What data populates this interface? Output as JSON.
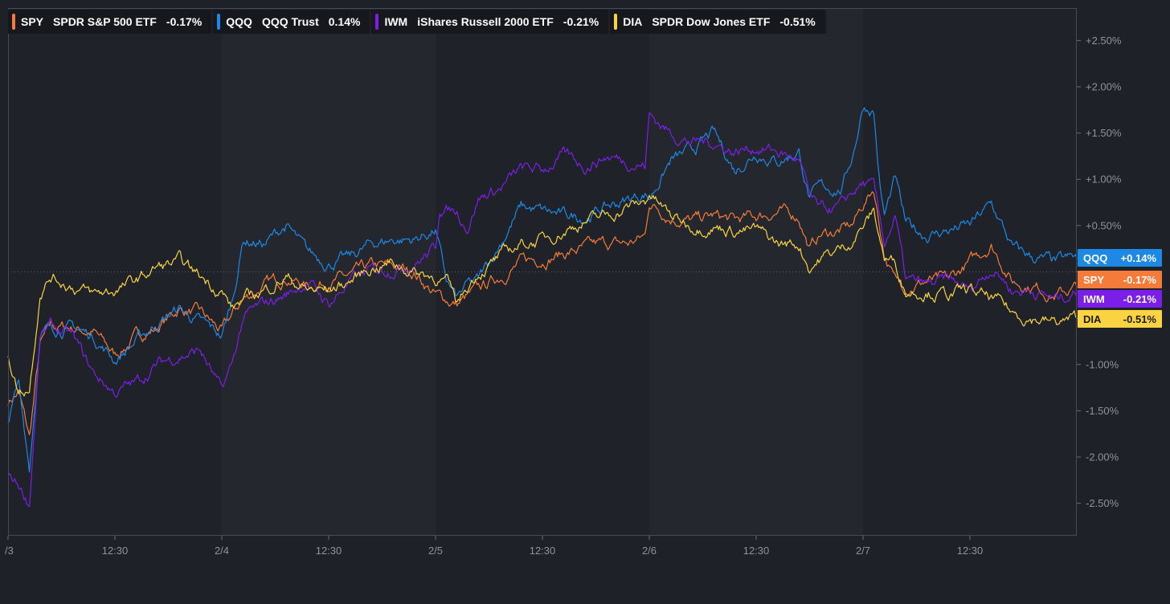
{
  "legend": [
    {
      "ticker": "SPY",
      "name": "SPDR S&P 500 ETF",
      "change": "-0.17%",
      "color": "#f47b3a"
    },
    {
      "ticker": "QQQ",
      "name": "QQQ Trust",
      "change": "0.14%",
      "color": "#1e88e5"
    },
    {
      "ticker": "IWM",
      "name": "iShares Russell 2000 ETF",
      "change": "-0.21%",
      "color": "#7b1fe8"
    },
    {
      "ticker": "DIA",
      "name": "SPDR Dow Jones ETF",
      "change": "-0.51%",
      "color": "#f9d342"
    }
  ],
  "badges": [
    {
      "ticker": "QQQ",
      "value": "+0.14%",
      "color": "#1e88e5",
      "text_color": "#ffffff"
    },
    {
      "ticker": "SPY",
      "value": "-0.17%",
      "color": "#f47b3a",
      "text_color": "#ffffff"
    },
    {
      "ticker": "IWM",
      "value": "-0.21%",
      "color": "#7b1fe8",
      "text_color": "#ffffff"
    },
    {
      "ticker": "DIA",
      "value": "-0.51%",
      "color": "#f9d342",
      "text_color": "#1a1a1a"
    }
  ],
  "chart_data": {
    "type": "line",
    "x_ticks": [
      "/3",
      "12:30",
      "2/4",
      "12:30",
      "2/5",
      "12:30",
      "2/6",
      "12:30",
      "2/7",
      "12:30"
    ],
    "y_ticks": [
      {
        "value": 2.5,
        "label": "+2.50%"
      },
      {
        "value": 2.0,
        "label": "+2.00%"
      },
      {
        "value": 1.5,
        "label": "+1.50%"
      },
      {
        "value": 1.0,
        "label": "+1.00%"
      },
      {
        "value": 0.5,
        "label": "+0.50%"
      },
      {
        "value": 0,
        "label": ""
      },
      {
        "value": -0.5,
        "label": ""
      },
      {
        "value": -1.0,
        "label": "-1.00%"
      },
      {
        "value": -1.5,
        "label": "-1.50%"
      },
      {
        "value": -2.0,
        "label": "-2.00%"
      },
      {
        "value": -2.5,
        "label": "-2.50%"
      }
    ],
    "ylim": [
      -2.85,
      2.85
    ],
    "xlim": [
      0,
      5
    ],
    "baseline": 0,
    "grid": false,
    "legend_position": "top-left",
    "series": [
      {
        "name": "SPY",
        "color": "#f47b3a",
        "points": [
          [
            0,
            -1.4
          ],
          [
            0.05,
            -1.3
          ],
          [
            0.1,
            -1.8
          ],
          [
            0.15,
            -0.8
          ],
          [
            0.2,
            -0.6
          ],
          [
            0.3,
            -0.6
          ],
          [
            0.4,
            -0.65
          ],
          [
            0.5,
            -0.9
          ],
          [
            0.6,
            -0.7
          ],
          [
            0.7,
            -0.6
          ],
          [
            0.8,
            -0.4
          ],
          [
            0.9,
            -0.45
          ],
          [
            1.0,
            -0.65
          ],
          [
            1.1,
            -0.3
          ],
          [
            1.2,
            -0.15
          ],
          [
            1.3,
            -0.05
          ],
          [
            1.4,
            -0.15
          ],
          [
            1.5,
            -0.1
          ],
          [
            1.6,
            -0.05
          ],
          [
            1.7,
            0.05
          ],
          [
            1.8,
            0.05
          ],
          [
            1.9,
            0.0
          ],
          [
            2.0,
            -0.25
          ],
          [
            2.1,
            -0.35
          ],
          [
            2.2,
            -0.2
          ],
          [
            2.3,
            -0.05
          ],
          [
            2.4,
            0.1
          ],
          [
            2.5,
            0.15
          ],
          [
            2.6,
            0.2
          ],
          [
            2.7,
            0.25
          ],
          [
            2.8,
            0.3
          ],
          [
            2.9,
            0.3
          ],
          [
            2.98,
            0.38
          ],
          [
            3.0,
            0.75
          ],
          [
            3.1,
            0.6
          ],
          [
            3.2,
            0.55
          ],
          [
            3.3,
            0.6
          ],
          [
            3.4,
            0.55
          ],
          [
            3.5,
            0.6
          ],
          [
            3.6,
            0.65
          ],
          [
            3.7,
            0.6
          ],
          [
            3.75,
            0.25
          ],
          [
            3.8,
            0.4
          ],
          [
            3.9,
            0.45
          ],
          [
            3.95,
            0.5
          ],
          [
            4.0,
            0.72
          ],
          [
            4.05,
            0.9
          ],
          [
            4.1,
            0.2
          ],
          [
            4.15,
            -0.1
          ],
          [
            4.2,
            -0.15
          ],
          [
            4.3,
            -0.1
          ],
          [
            4.4,
            -0.1
          ],
          [
            4.5,
            0.1
          ],
          [
            4.6,
            0.3
          ],
          [
            4.65,
            0.1
          ],
          [
            4.7,
            -0.1
          ],
          [
            4.8,
            -0.15
          ],
          [
            4.9,
            -0.25
          ],
          [
            5.0,
            -0.17
          ]
        ]
      },
      {
        "name": "QQQ",
        "color": "#1e88e5",
        "points": [
          [
            0,
            -1.6
          ],
          [
            0.05,
            -1.2
          ],
          [
            0.1,
            -2.1
          ],
          [
            0.15,
            -0.7
          ],
          [
            0.2,
            -0.6
          ],
          [
            0.3,
            -0.6
          ],
          [
            0.4,
            -0.7
          ],
          [
            0.5,
            -0.95
          ],
          [
            0.6,
            -0.75
          ],
          [
            0.7,
            -0.55
          ],
          [
            0.8,
            -0.4
          ],
          [
            0.9,
            -0.55
          ],
          [
            1.0,
            -0.7
          ],
          [
            1.05,
            -0.3
          ],
          [
            1.1,
            0.35
          ],
          [
            1.2,
            0.3
          ],
          [
            1.3,
            0.5
          ],
          [
            1.4,
            0.2
          ],
          [
            1.5,
            0.1
          ],
          [
            1.6,
            0.15
          ],
          [
            1.7,
            0.3
          ],
          [
            1.8,
            0.35
          ],
          [
            1.9,
            0.35
          ],
          [
            2.0,
            0.45
          ],
          [
            2.05,
            -0.1
          ],
          [
            2.1,
            -0.3
          ],
          [
            2.15,
            -0.15
          ],
          [
            2.2,
            -0.1
          ],
          [
            2.3,
            0.3
          ],
          [
            2.4,
            0.7
          ],
          [
            2.5,
            0.65
          ],
          [
            2.6,
            0.6
          ],
          [
            2.7,
            0.6
          ],
          [
            2.8,
            0.7
          ],
          [
            2.9,
            0.78
          ],
          [
            2.98,
            0.85
          ],
          [
            3.0,
            0.8
          ],
          [
            3.1,
            1.2
          ],
          [
            3.2,
            1.3
          ],
          [
            3.3,
            1.5
          ],
          [
            3.4,
            1.1
          ],
          [
            3.5,
            1.3
          ],
          [
            3.6,
            1.2
          ],
          [
            3.7,
            1.3
          ],
          [
            3.75,
            0.8
          ],
          [
            3.8,
            0.9
          ],
          [
            3.9,
            0.9
          ],
          [
            3.95,
            1.25
          ],
          [
            4.0,
            1.8
          ],
          [
            4.05,
            1.75
          ],
          [
            4.08,
            0.9
          ],
          [
            4.1,
            0.6
          ],
          [
            4.15,
            1.0
          ],
          [
            4.2,
            0.5
          ],
          [
            4.3,
            0.4
          ],
          [
            4.4,
            0.45
          ],
          [
            4.5,
            0.5
          ],
          [
            4.6,
            0.72
          ],
          [
            4.65,
            0.5
          ],
          [
            4.7,
            0.25
          ],
          [
            4.8,
            0.15
          ],
          [
            4.9,
            0.1
          ],
          [
            5.0,
            0.14
          ]
        ]
      },
      {
        "name": "IWM",
        "color": "#7b1fe8",
        "points": [
          [
            0,
            -2.2
          ],
          [
            0.05,
            -2.3
          ],
          [
            0.1,
            -2.5
          ],
          [
            0.15,
            -0.7
          ],
          [
            0.2,
            -0.6
          ],
          [
            0.3,
            -0.7
          ],
          [
            0.4,
            -1.1
          ],
          [
            0.5,
            -1.3
          ],
          [
            0.6,
            -1.2
          ],
          [
            0.7,
            -1.0
          ],
          [
            0.8,
            -0.9
          ],
          [
            0.9,
            -0.85
          ],
          [
            1.0,
            -1.3
          ],
          [
            1.05,
            -1.0
          ],
          [
            1.1,
            -0.5
          ],
          [
            1.2,
            -0.35
          ],
          [
            1.3,
            -0.25
          ],
          [
            1.4,
            -0.1
          ],
          [
            1.5,
            -0.35
          ],
          [
            1.6,
            -0.1
          ],
          [
            1.7,
            0.0
          ],
          [
            1.8,
            0.05
          ],
          [
            1.9,
            0.1
          ],
          [
            2.0,
            0.25
          ],
          [
            2.02,
            0.7
          ],
          [
            2.1,
            0.65
          ],
          [
            2.15,
            0.5
          ],
          [
            2.2,
            0.8
          ],
          [
            2.3,
            0.9
          ],
          [
            2.4,
            1.1
          ],
          [
            2.5,
            1.1
          ],
          [
            2.6,
            1.25
          ],
          [
            2.7,
            1.15
          ],
          [
            2.8,
            1.25
          ],
          [
            2.9,
            1.2
          ],
          [
            2.98,
            1.15
          ],
          [
            3.0,
            1.7
          ],
          [
            3.1,
            1.5
          ],
          [
            3.2,
            1.4
          ],
          [
            3.3,
            1.4
          ],
          [
            3.4,
            1.3
          ],
          [
            3.5,
            1.35
          ],
          [
            3.6,
            1.3
          ],
          [
            3.7,
            1.2
          ],
          [
            3.75,
            0.8
          ],
          [
            3.8,
            0.65
          ],
          [
            3.9,
            0.7
          ],
          [
            3.95,
            0.85
          ],
          [
            4.0,
            0.95
          ],
          [
            4.05,
            0.9
          ],
          [
            4.1,
            0.3
          ],
          [
            4.15,
            0.6
          ],
          [
            4.2,
            -0.1
          ],
          [
            4.3,
            -0.15
          ],
          [
            4.4,
            -0.1
          ],
          [
            4.5,
            -0.2
          ],
          [
            4.6,
            0.05
          ],
          [
            4.65,
            -0.05
          ],
          [
            4.7,
            -0.2
          ],
          [
            4.8,
            -0.2
          ],
          [
            4.9,
            -0.3
          ],
          [
            5.0,
            -0.21
          ]
        ]
      },
      {
        "name": "DIA",
        "color": "#f9d342",
        "points": [
          [
            0,
            -0.9
          ],
          [
            0.05,
            -1.3
          ],
          [
            0.1,
            -1.25
          ],
          [
            0.15,
            -0.2
          ],
          [
            0.2,
            -0.05
          ],
          [
            0.3,
            -0.15
          ],
          [
            0.4,
            -0.25
          ],
          [
            0.5,
            -0.2
          ],
          [
            0.6,
            -0.1
          ],
          [
            0.7,
            0.05
          ],
          [
            0.8,
            0.1
          ],
          [
            0.9,
            -0.05
          ],
          [
            1.0,
            -0.2
          ],
          [
            1.05,
            -0.4
          ],
          [
            1.1,
            -0.3
          ],
          [
            1.2,
            -0.2
          ],
          [
            1.3,
            -0.05
          ],
          [
            1.4,
            -0.2
          ],
          [
            1.5,
            -0.2
          ],
          [
            1.6,
            -0.1
          ],
          [
            1.7,
            0.05
          ],
          [
            1.8,
            0.1
          ],
          [
            1.9,
            0.0
          ],
          [
            2.0,
            -0.05
          ],
          [
            2.05,
            -0.1
          ],
          [
            2.1,
            -0.35
          ],
          [
            2.15,
            -0.15
          ],
          [
            2.2,
            0.0
          ],
          [
            2.3,
            0.15
          ],
          [
            2.4,
            0.3
          ],
          [
            2.5,
            0.35
          ],
          [
            2.6,
            0.45
          ],
          [
            2.7,
            0.55
          ],
          [
            2.8,
            0.6
          ],
          [
            2.9,
            0.7
          ],
          [
            2.98,
            0.75
          ],
          [
            3.0,
            0.85
          ],
          [
            3.1,
            0.6
          ],
          [
            3.2,
            0.5
          ],
          [
            3.3,
            0.5
          ],
          [
            3.4,
            0.45
          ],
          [
            3.5,
            0.45
          ],
          [
            3.6,
            0.3
          ],
          [
            3.7,
            0.3
          ],
          [
            3.75,
            0.05
          ],
          [
            3.8,
            0.15
          ],
          [
            3.9,
            0.25
          ],
          [
            3.95,
            0.35
          ],
          [
            4.0,
            0.5
          ],
          [
            4.05,
            0.65
          ],
          [
            4.1,
            0.15
          ],
          [
            4.15,
            0.1
          ],
          [
            4.2,
            -0.2
          ],
          [
            4.3,
            -0.2
          ],
          [
            4.4,
            -0.25
          ],
          [
            4.5,
            -0.2
          ],
          [
            4.6,
            -0.3
          ],
          [
            4.65,
            -0.35
          ],
          [
            4.7,
            -0.45
          ],
          [
            4.8,
            -0.5
          ],
          [
            4.9,
            -0.55
          ],
          [
            5.0,
            -0.51
          ]
        ]
      }
    ]
  }
}
